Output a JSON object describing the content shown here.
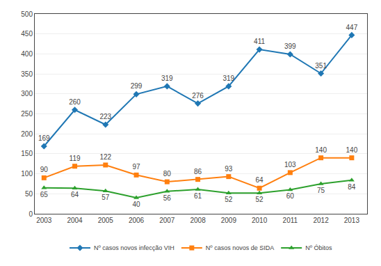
{
  "chart_data": {
    "type": "line",
    "x": [
      2003,
      2004,
      2005,
      2006,
      2007,
      2008,
      2009,
      2010,
      2011,
      2012,
      2013
    ],
    "series": [
      {
        "name": "Nº casos novos infecção VIH",
        "values": [
          169,
          260,
          223,
          299,
          319,
          276,
          319,
          411,
          399,
          351,
          447
        ],
        "marker": "diamond"
      },
      {
        "name": "Nº casos novos de SIDA",
        "values": [
          90,
          119,
          122,
          97,
          80,
          86,
          93,
          64,
          103,
          140,
          140
        ],
        "marker": "square"
      },
      {
        "name": "Nº Óbitos",
        "values": [
          65,
          64,
          57,
          40,
          56,
          61,
          52,
          52,
          60,
          75,
          84
        ],
        "marker": "triangle-up"
      }
    ],
    "xlim": [
      2002.7,
      2013.5
    ],
    "xticks": [
      2003,
      2004,
      2005,
      2006,
      2007,
      2008,
      2009,
      2010,
      2011,
      2012,
      2013
    ],
    "ylim": [
      0,
      500
    ],
    "yticks": [
      0,
      50,
      100,
      150,
      200,
      250,
      300,
      350,
      400,
      450,
      500
    ],
    "grid": true,
    "legend": "bottom",
    "data_labels": true
  }
}
